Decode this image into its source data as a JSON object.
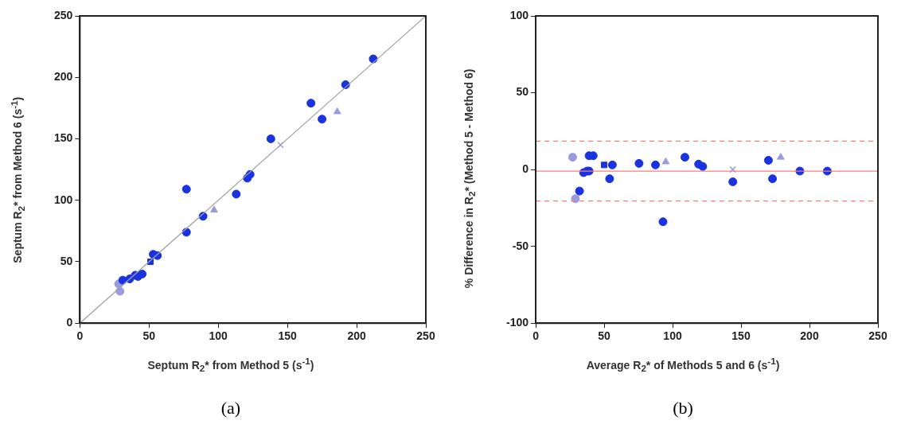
{
  "chart_data": [
    {
      "type": "scatter",
      "xlabel": "Septum R$_{2}$* from Method 5 (s$^{-1}$)",
      "ylabel": "Septum R$_{2}$* from Method 6 (s$^{-1}$)",
      "annotations": [
        "(a)"
      ],
      "xlim": [
        0,
        250
      ],
      "ylim": [
        0,
        250
      ],
      "xticks": [
        0,
        50,
        100,
        150,
        200,
        250
      ],
      "yticks": [
        0,
        50,
        100,
        150,
        200,
        250
      ],
      "grid": false,
      "legend": false,
      "series": [
        {
          "type": "line",
          "color": "#a0a0a0",
          "marker": "none",
          "x": [
            0,
            250
          ],
          "values": [
            0,
            250
          ]
        },
        {
          "color": "#1a33e0",
          "marker": "circle",
          "x": [
            212,
            192,
            167,
            175,
            138,
            123,
            121,
            113,
            77,
            89,
            77,
            56,
            53,
            45,
            42,
            40,
            36,
            31
          ],
          "values": [
            215,
            194,
            179,
            166,
            150,
            121,
            118,
            105,
            109,
            87,
            74,
            55,
            56,
            40,
            38,
            39,
            36,
            35
          ]
        },
        {
          "color": "#1a33e0",
          "marker": "square",
          "x": [
            51
          ],
          "values": [
            50
          ]
        },
        {
          "color": "#9a9ae0",
          "marker": "circle",
          "x": [
            28,
            29
          ],
          "values": [
            32,
            26
          ]
        },
        {
          "color": "#9a9ae0",
          "marker": "triangle",
          "x": [
            97,
            186
          ],
          "values": [
            92,
            172
          ]
        },
        {
          "color": "#9a9ae0",
          "marker": "cross",
          "x": [
            145
          ],
          "values": [
            145
          ]
        }
      ]
    },
    {
      "type": "scatter",
      "xlabel": "Average R$_{2}$* of Methods 5 and 6 (s$^{-1}$)",
      "ylabel": "% Difference in R$_{2}$* (Method 5 - Method 6)",
      "annotations": [
        "(b)"
      ],
      "xlim": [
        0,
        250
      ],
      "ylim": [
        -100,
        100
      ],
      "xticks": [
        0,
        50,
        100,
        150,
        200,
        250
      ],
      "yticks": [
        -100,
        -50,
        0,
        50,
        100
      ],
      "grid": false,
      "legend": false,
      "ref_lines": [
        {
          "axis": "y",
          "value": -1,
          "color": "#f08080",
          "line_style": "solid"
        },
        {
          "axis": "y",
          "value": 18.5,
          "color": "#f08080",
          "line_style": "dashed"
        },
        {
          "axis": "y",
          "value": -20.5,
          "color": "#f08080",
          "line_style": "dashed"
        }
      ],
      "series": [
        {
          "color": "#1a33e0",
          "marker": "circle",
          "x": [
            32,
            35,
            37.5,
            39,
            39,
            42,
            54,
            56,
            75.5,
            87.5,
            93,
            109,
            119,
            122,
            144,
            170,
            173,
            193,
            213
          ],
          "values": [
            -14,
            -2,
            -1,
            -1,
            9,
            9,
            -6,
            3,
            4,
            3,
            -34,
            8,
            3.5,
            2,
            -8,
            6,
            -6,
            -1,
            -1
          ]
        },
        {
          "color": "#1a33e0",
          "marker": "square",
          "x": [
            50
          ],
          "values": [
            3
          ]
        },
        {
          "color": "#9a9ae0",
          "marker": "circle",
          "x": [
            27,
            29
          ],
          "values": [
            8,
            -19
          ]
        },
        {
          "color": "#9a9ae0",
          "marker": "triangle",
          "x": [
            95,
            179
          ],
          "values": [
            5,
            8
          ]
        },
        {
          "color": "#9a9ae0",
          "marker": "cross",
          "x": [
            144
          ],
          "values": [
            0
          ]
        }
      ]
    }
  ]
}
